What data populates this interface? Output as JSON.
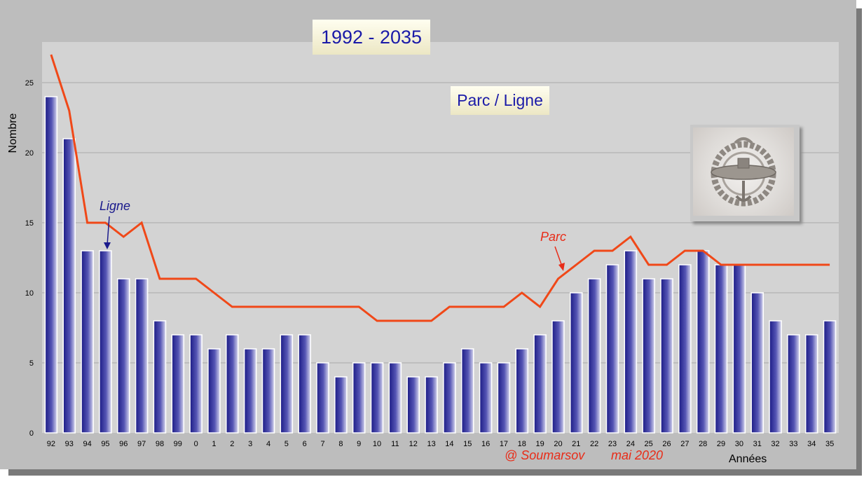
{
  "chart_data": {
    "type": "bar",
    "title": "1992 - 2035",
    "subtitle": "Parc / Ligne",
    "xlabel": "Années",
    "ylabel": "Nombre",
    "ylim": [
      0,
      27.9
    ],
    "yticks": [
      0,
      5,
      10,
      15,
      20,
      25
    ],
    "grid": true,
    "categories": [
      "92",
      "93",
      "94",
      "95",
      "96",
      "97",
      "98",
      "99",
      "0",
      "1",
      "2",
      "3",
      "4",
      "5",
      "6",
      "7",
      "8",
      "9",
      "10",
      "11",
      "12",
      "13",
      "14",
      "15",
      "16",
      "17",
      "18",
      "19",
      "20",
      "21",
      "22",
      "23",
      "24",
      "25",
      "26",
      "27",
      "28",
      "29",
      "30",
      "31",
      "32",
      "33",
      "34",
      "35"
    ],
    "series": [
      {
        "name": "Ligne",
        "type": "bar",
        "color": "#1e1e8a",
        "values": [
          24,
          21,
          13,
          13,
          11,
          11,
          8,
          7,
          7,
          6,
          7,
          6,
          6,
          7,
          7,
          5,
          4,
          5,
          5,
          5,
          4,
          4,
          5,
          6,
          5,
          5,
          6,
          7,
          8,
          10,
          11,
          12,
          13,
          11,
          11,
          12,
          13,
          12,
          12,
          10,
          8,
          7,
          7,
          8
        ]
      },
      {
        "name": "Parc",
        "type": "line",
        "color": "#f04818",
        "values": [
          27,
          23,
          15,
          15,
          14,
          15,
          11,
          11,
          11,
          10,
          9,
          9,
          9,
          9,
          9,
          9,
          9,
          9,
          8,
          8,
          8,
          8,
          9,
          9,
          9,
          9,
          10,
          9,
          11,
          12,
          13,
          13,
          14,
          12,
          12,
          13,
          13,
          12,
          12,
          12,
          12,
          12,
          12,
          12
        ]
      }
    ],
    "annotations": [
      {
        "text": "Ligne",
        "color": "#1a1a8c"
      },
      {
        "text": "Parc",
        "color": "#e82c18"
      }
    ],
    "credits": {
      "author": "@ Soumarsov",
      "date": "mai 2020"
    }
  },
  "emblem": {
    "icon": "submarine-insignia-icon"
  }
}
